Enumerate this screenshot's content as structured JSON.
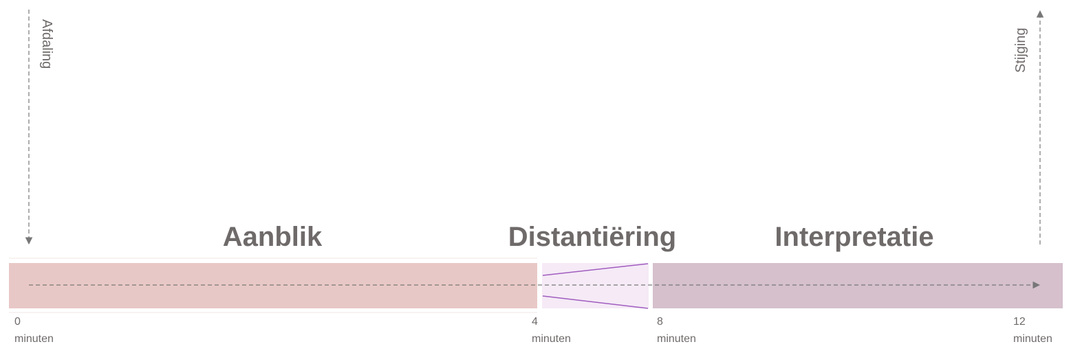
{
  "phases": {
    "aanblik": {
      "title": "Aanblik",
      "color": "#e8c8c6"
    },
    "distantiering": {
      "title": "Distantiëring",
      "color": "#f5eaf6",
      "line_color": "#a05cbf"
    },
    "interpretatie": {
      "title": "Interpretatie",
      "color": "#d5c0cc"
    }
  },
  "axes": {
    "descent_label": "Afdaling",
    "ascent_label": "Stijging",
    "line_color": "#777777"
  },
  "ticks": [
    {
      "value": "0",
      "unit": "minuten"
    },
    {
      "value": "4",
      "unit": "minuten"
    },
    {
      "value": "8",
      "unit": "minuten"
    },
    {
      "value": "12",
      "unit": "minuten"
    }
  ]
}
